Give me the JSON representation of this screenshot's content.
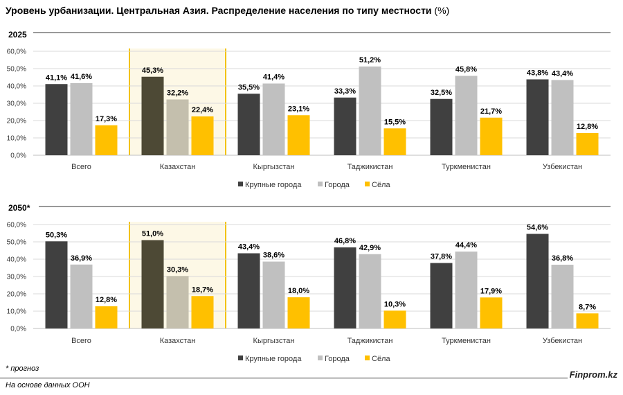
{
  "title": "Уровень урбанизации. Центральная Азия. Распределение населения по типу местности",
  "title_unit": "(%)",
  "colors": {
    "big_cities": "#404040",
    "big_cities_kz": "#4d4935",
    "cities": "#c0c0c0",
    "cities_kz": "#c4bfad",
    "villages": "#ffc000",
    "highlight_bg": "#fdf8e6",
    "highlight_border": "#f2c200"
  },
  "footnote": "* прогноз",
  "source": "На основе данных ООН",
  "brand": "Finprom.kz",
  "chart_data": [
    {
      "type": "bar",
      "panel_label": "2025",
      "categories": [
        "Всего",
        "Казахстан",
        "Кыргызстан",
        "Таджикистан",
        "Туркменистан",
        "Узбекистан"
      ],
      "highlight_category": "Казахстан",
      "ylim": [
        0,
        60
      ],
      "yticks": [
        "0,0%",
        "10,0%",
        "20,0%",
        "30,0%",
        "40,0%",
        "50,0%",
        "60,0%"
      ],
      "legend_position": "bottom",
      "series": [
        {
          "name": "Крупные города",
          "values": [
            41.1,
            45.3,
            35.5,
            33.3,
            32.5,
            43.8
          ],
          "labels": [
            "41,1%",
            "45,3%",
            "35,5%",
            "33,3%",
            "32,5%",
            "43,8%"
          ]
        },
        {
          "name": "Города",
          "values": [
            41.6,
            32.2,
            41.4,
            51.2,
            45.8,
            43.4
          ],
          "labels": [
            "41,6%",
            "32,2%",
            "41,4%",
            "51,2%",
            "45,8%",
            "43,4%"
          ]
        },
        {
          "name": "Сёла",
          "values": [
            17.3,
            22.4,
            23.1,
            15.5,
            21.7,
            12.8
          ],
          "labels": [
            "17,3%",
            "22,4%",
            "23,1%",
            "15,5%",
            "21,7%",
            "12,8%"
          ]
        }
      ]
    },
    {
      "type": "bar",
      "panel_label": "2050*",
      "categories": [
        "Всего",
        "Казахстан",
        "Кыргызстан",
        "Таджикистан",
        "Туркменистан",
        "Узбекистан"
      ],
      "highlight_category": "Казахстан",
      "ylim": [
        0,
        60
      ],
      "yticks": [
        "0,0%",
        "10,0%",
        "20,0%",
        "30,0%",
        "40,0%",
        "50,0%",
        "60,0%"
      ],
      "legend_position": "bottom",
      "series": [
        {
          "name": "Крупные города",
          "values": [
            50.3,
            51.0,
            43.4,
            46.8,
            37.8,
            54.6
          ],
          "labels": [
            "50,3%",
            "51,0%",
            "43,4%",
            "46,8%",
            "37,8%",
            "54,6%"
          ]
        },
        {
          "name": "Города",
          "values": [
            36.9,
            30.3,
            38.6,
            42.9,
            44.4,
            36.8
          ],
          "labels": [
            "36,9%",
            "30,3%",
            "38,6%",
            "42,9%",
            "44,4%",
            "36,8%"
          ]
        },
        {
          "name": "Сёла",
          "values": [
            12.8,
            18.7,
            18.0,
            10.3,
            17.9,
            8.7
          ],
          "labels": [
            "12,8%",
            "18,7%",
            "18,0%",
            "10,3%",
            "17,9%",
            "8,7%"
          ]
        }
      ]
    }
  ]
}
